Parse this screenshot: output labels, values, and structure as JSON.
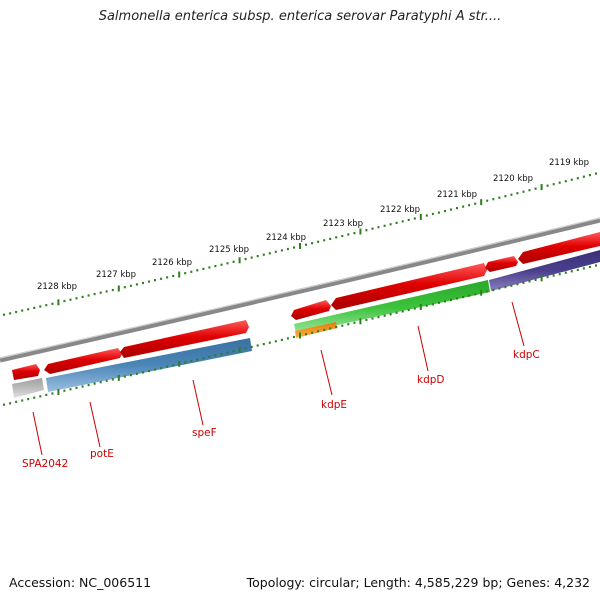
{
  "title": "Salmonella enterica subsp. enterica serovar Paratyphi A str....",
  "footer": {
    "accession": "Accession: NC_006511",
    "topology": "Topology: circular; Length: 4,585,229 bp; Genes: 4,232"
  },
  "ruler": {
    "labels": [
      "2128 kbp",
      "2127 kbp",
      "2126 kbp",
      "2125 kbp",
      "2124 kbp",
      "2123 kbp",
      "2122 kbp",
      "2121 kbp",
      "2120 kbp",
      "2119 kbp"
    ],
    "color": "#2e7d1e"
  },
  "genes": {
    "labels": [
      "SPA2042",
      "potE",
      "speF",
      "kdpE",
      "kdpD",
      "kdpC"
    ],
    "label_color": "#cc0000"
  },
  "colors": {
    "cds_red": "#e00000",
    "blue_domain": "#4a86b8",
    "green_domain": "#3cc23c",
    "orange_domain": "#f09a20",
    "purple_domain": "#4a3f8c",
    "grey_domain": "#b8b8b8",
    "backbone": "#7a7a7a"
  }
}
